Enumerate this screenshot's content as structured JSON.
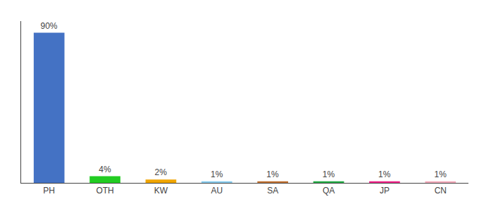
{
  "chart_data": {
    "type": "bar",
    "categories": [
      "PH",
      "OTH",
      "KW",
      "AU",
      "SA",
      "QA",
      "JP",
      "CN"
    ],
    "values": [
      90,
      4,
      2,
      1,
      1,
      1,
      1,
      1
    ],
    "value_labels": [
      "90%",
      "4%",
      "2%",
      "1%",
      "1%",
      "1%",
      "1%",
      "1%"
    ],
    "data_labels": true,
    "colors": [
      "#4472c4",
      "#22cc22",
      "#f0a500",
      "#88ccee",
      "#c07030",
      "#22aa44",
      "#ee2288",
      "#f4aabb"
    ],
    "ylim": [
      0,
      97
    ],
    "grid": false,
    "tick_labels": "x"
  }
}
